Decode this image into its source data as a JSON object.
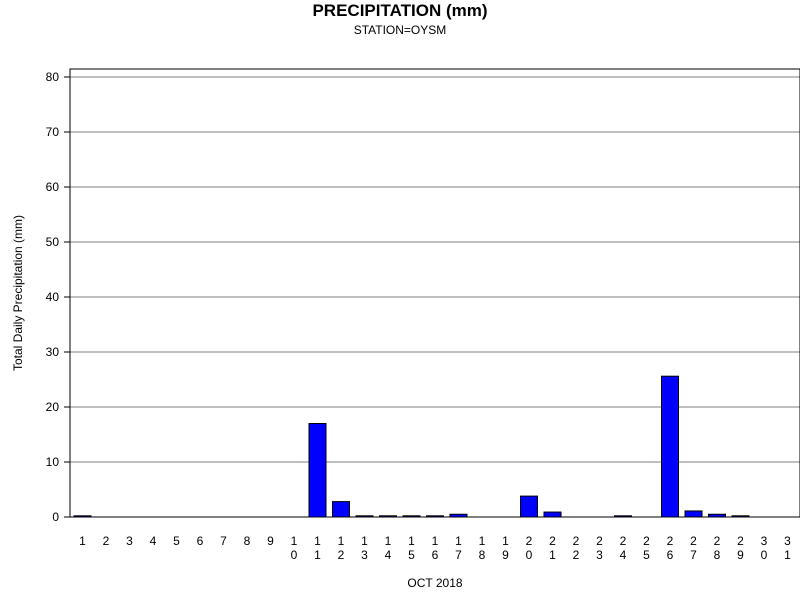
{
  "chart_data": {
    "type": "bar",
    "title": "PRECIPITATION (mm)",
    "subtitle": "STATION=OYSM",
    "xlabel": "OCT 2018",
    "ylabel": "Total Daily Precipitation (mm)",
    "ylim": [
      0,
      80
    ],
    "yticks": [
      0,
      10,
      20,
      30,
      40,
      50,
      60,
      70,
      80
    ],
    "grid": true,
    "bar_color": "#0000ff",
    "categories": [
      "1",
      "2",
      "3",
      "4",
      "5",
      "6",
      "7",
      "8",
      "9",
      "10",
      "11",
      "12",
      "13",
      "14",
      "15",
      "16",
      "17",
      "18",
      "19",
      "20",
      "21",
      "22",
      "23",
      "24",
      "25",
      "26",
      "27",
      "28",
      "29",
      "30",
      "31"
    ],
    "values": [
      0.1,
      0,
      0,
      0,
      0,
      0,
      0,
      0,
      0,
      0,
      17.0,
      2.8,
      0.1,
      0.1,
      0.1,
      0.1,
      0.5,
      0,
      0,
      3.8,
      0.9,
      0,
      0,
      0.1,
      0,
      25.6,
      1.1,
      0.5,
      0.1,
      0,
      0
    ]
  }
}
